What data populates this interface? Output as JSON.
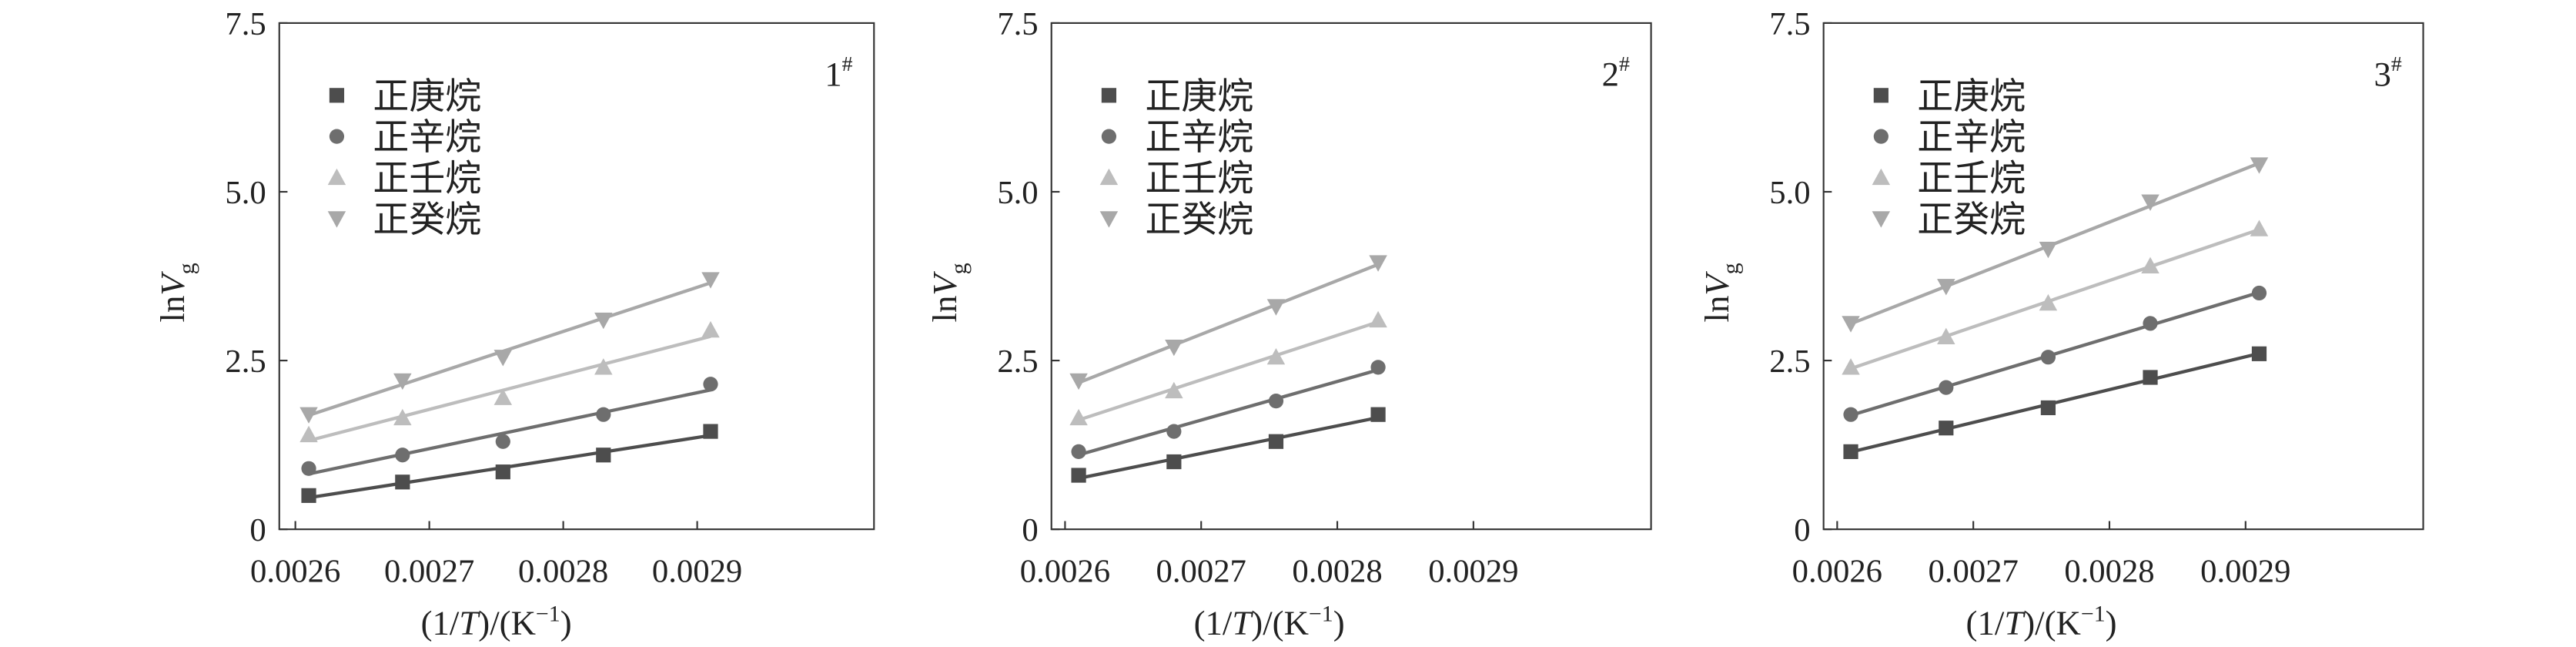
{
  "chart_data": [
    {
      "type": "scatter",
      "panel_label": {
        "text": "1",
        "sup": "#"
      },
      "ylabel": {
        "text": "ln",
        "italic": "V",
        "sub": "g"
      },
      "xlabel": [
        {
          "text": "(1/"
        },
        {
          "text": "T",
          "style": "italic"
        },
        {
          "text": ")/(K"
        },
        {
          "text": "−1",
          "style": "sup"
        },
        {
          "text": ")"
        }
      ],
      "x": [
        0.00261,
        0.00268,
        0.002755,
        0.00283,
        0.00291
      ],
      "xlim": [
        0.002588,
        0.003032
      ],
      "xticks": [
        0.0026,
        0.0027,
        0.0028,
        0.0029
      ],
      "ylim": [
        0,
        7.5
      ],
      "yticks": [
        0,
        2.5,
        {
          "value": 5,
          "label": "5.0"
        },
        7.5
      ],
      "legend": "upper left",
      "fit_lines": true,
      "series": [
        {
          "name": "正庚烷",
          "color": "#4d4d4d",
          "marker": "square",
          "values": [
            0.5,
            0.7,
            0.85,
            1.1,
            1.45
          ]
        },
        {
          "name": "正辛烷",
          "color": "#6e6e6e",
          "marker": "circle",
          "values": [
            0.9,
            1.1,
            1.3,
            1.7,
            2.15
          ]
        },
        {
          "name": "正壬烷",
          "color": "#bdbdbd",
          "marker": "triangle-up",
          "values": [
            1.4,
            1.65,
            1.95,
            2.4,
            2.95
          ]
        },
        {
          "name": "正癸烷",
          "color": "#a8a8a8",
          "marker": "triangle-down",
          "values": [
            1.7,
            2.2,
            2.55,
            3.1,
            3.7
          ]
        }
      ]
    },
    {
      "type": "scatter",
      "panel_label": {
        "text": "2",
        "sup": "#"
      },
      "ylabel": {
        "text": "ln",
        "italic": "V",
        "sub": "g"
      },
      "xlabel": [
        {
          "text": "(1/"
        },
        {
          "text": "T",
          "style": "italic"
        },
        {
          "text": ")/(K"
        },
        {
          "text": "−1",
          "style": "sup"
        },
        {
          "text": ")"
        }
      ],
      "x": [
        0.00261,
        0.00268,
        0.002755,
        0.00283
      ],
      "xlim": [
        0.00259,
        0.0030305
      ],
      "xticks": [
        0.0026,
        0.0027,
        0.0028,
        0.0029
      ],
      "ylim": [
        0,
        7.5
      ],
      "yticks": [
        0,
        2.5,
        {
          "value": 5,
          "label": "5.0"
        },
        7.5
      ],
      "legend": "upper left",
      "fit_lines": true,
      "series": [
        {
          "name": "正庚烷",
          "color": "#4d4d4d",
          "marker": "square",
          "values": [
            0.8,
            1.0,
            1.3,
            1.7
          ]
        },
        {
          "name": "正辛烷",
          "color": "#6e6e6e",
          "marker": "circle",
          "values": [
            1.15,
            1.45,
            1.9,
            2.4
          ]
        },
        {
          "name": "正壬烷",
          "color": "#bdbdbd",
          "marker": "triangle-up",
          "values": [
            1.65,
            2.05,
            2.55,
            3.1
          ]
        },
        {
          "name": "正癸烷",
          "color": "#a8a8a8",
          "marker": "triangle-down",
          "values": [
            2.2,
            2.7,
            3.3,
            3.95
          ]
        }
      ]
    },
    {
      "type": "scatter",
      "panel_label": {
        "text": "3",
        "sup": "#"
      },
      "ylabel": {
        "text": "ln",
        "italic": "V",
        "sub": "g"
      },
      "xlabel": [
        {
          "text": "(1/"
        },
        {
          "text": "T",
          "style": "italic"
        },
        {
          "text": ")/(K"
        },
        {
          "text": "−1",
          "style": "sup"
        },
        {
          "text": ")"
        }
      ],
      "x": [
        0.00261,
        0.00268,
        0.002755,
        0.00283,
        0.00291
      ],
      "xlim": [
        0.00259,
        0.0030305
      ],
      "xticks": [
        0.0026,
        0.0027,
        0.0028,
        0.0029
      ],
      "ylim": [
        0,
        7.5
      ],
      "yticks": [
        0,
        2.5,
        {
          "value": 5,
          "label": "5.0"
        },
        7.5
      ],
      "legend": "upper left",
      "fit_lines": true,
      "series": [
        {
          "name": "正庚烷",
          "color": "#4d4d4d",
          "marker": "square",
          "values": [
            1.15,
            1.5,
            1.8,
            2.25,
            2.6
          ]
        },
        {
          "name": "正辛烷",
          "color": "#6e6e6e",
          "marker": "circle",
          "values": [
            1.7,
            2.1,
            2.55,
            3.05,
            3.5
          ]
        },
        {
          "name": "正壬烷",
          "color": "#bdbdbd",
          "marker": "triangle-up",
          "values": [
            2.4,
            2.85,
            3.35,
            3.9,
            4.45
          ]
        },
        {
          "name": "正癸烷",
          "color": "#a8a8a8",
          "marker": "triangle-down",
          "values": [
            3.05,
            3.6,
            4.15,
            4.85,
            5.4
          ]
        }
      ]
    }
  ]
}
